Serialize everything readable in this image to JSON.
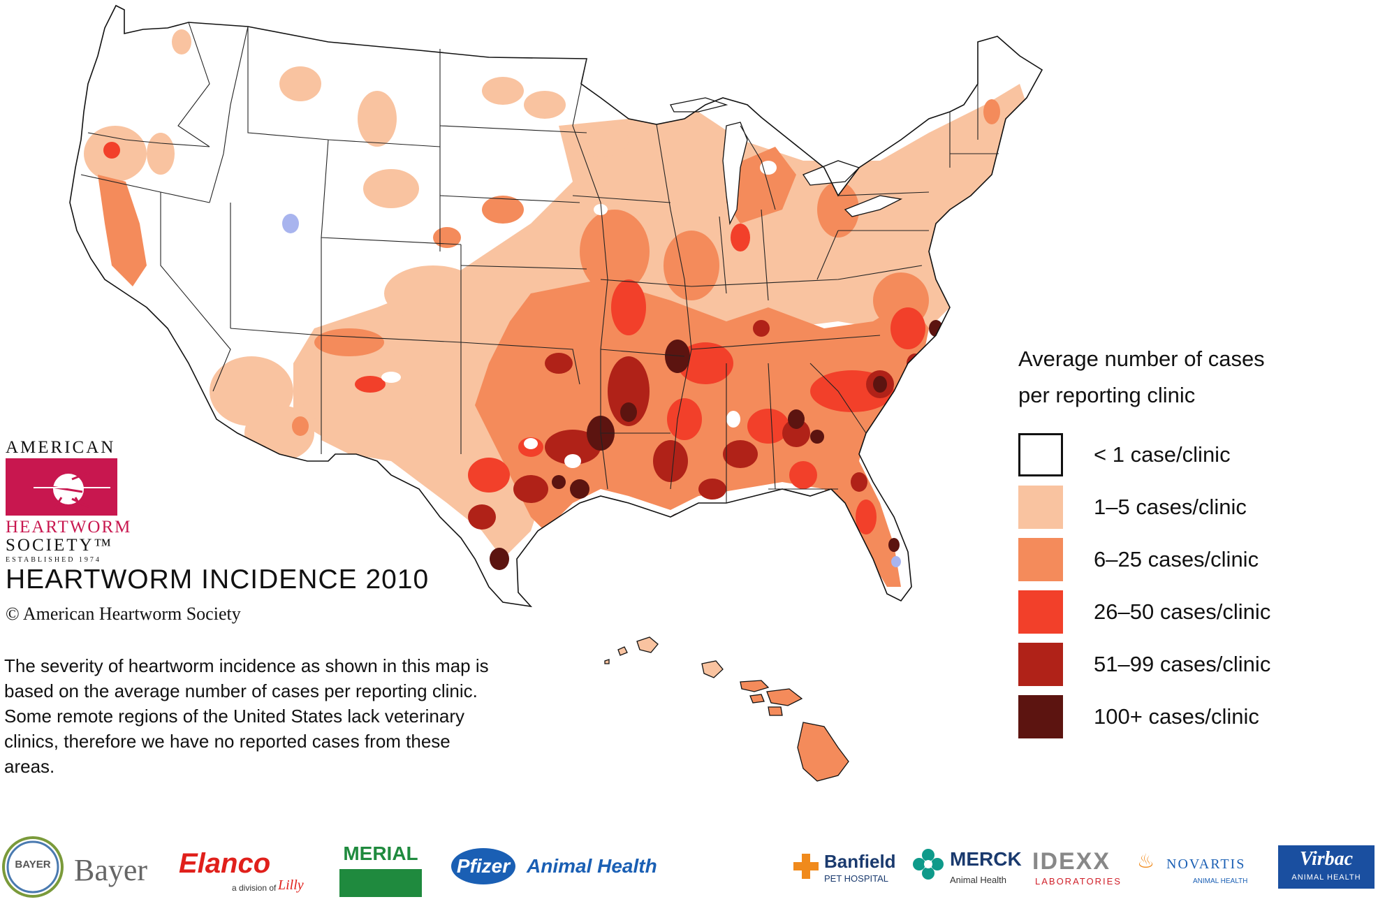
{
  "title": "HEARTWORM INCIDENCE 2010",
  "copyright": "© American Heartworm Society",
  "description": "The severity of heartworm incidence as shown in this map is based on the average number of cases per reporting clinic.  Some remote regions of the United States lack veterinary clinics, therefore we have no reported cases from these areas.",
  "logo": {
    "line1": "AMERICAN",
    "line2": "HEARTWORM",
    "line3": "SOCIETY™",
    "established": "ESTABLISHED 1974"
  },
  "legend": {
    "title_line1": "Average number of cases",
    "title_line2": "per reporting clinic",
    "items": [
      {
        "label": "< 1 case/clinic",
        "color": "#ffffff"
      },
      {
        "label": "1–5 cases/clinic",
        "color": "#f9c3a0"
      },
      {
        "label": "6–25  cases/clinic",
        "color": "#f48b5b"
      },
      {
        "label": "26–50  cases/clinic",
        "color": "#f2402a"
      },
      {
        "label": "51–99 cases/clinic",
        "color": "#b02218"
      },
      {
        "label": "100+ cases/clinic",
        "color": "#5c1410"
      }
    ]
  },
  "sponsors": {
    "bayer": "Bayer",
    "bayer_cross": "BAYER",
    "elanco": "Elanco",
    "elanco_sub": "a division of",
    "lilly": "Lilly",
    "merial": "MERIAL",
    "pfizer": "Pfizer",
    "pfizer_sub": "Animal Health",
    "banfield": "Banfield",
    "banfield_sub": "PET HOSPITAL",
    "merck": "MERCK",
    "merck_sub": "Animal Health",
    "idexx": "IDEXX",
    "idexx_sub": "LABORATORIES",
    "novartis": "NOVARTIS",
    "novartis_sub": "ANIMAL HEALTH",
    "virbac": "Virbac",
    "virbac_sub": "ANIMAL HEALTH"
  },
  "colors": {
    "none": "#ffffff",
    "low": "#f9c3a0",
    "medium": "#f48b5b",
    "high": "#f2402a",
    "very_high": "#b02218",
    "extreme": "#5c1410",
    "ahs_red": "#c8174f",
    "lake": "#a8b4ee"
  }
}
